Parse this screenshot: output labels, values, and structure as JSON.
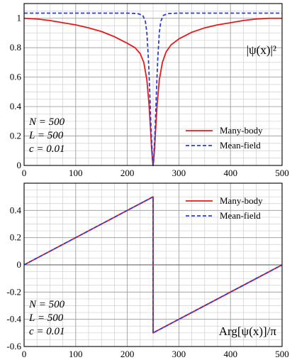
{
  "chart_data": [
    {
      "type": "line",
      "title": "",
      "ylabel": "|ψ(x)|²",
      "xlabel": "",
      "xlim": [
        0,
        500
      ],
      "ylim": [
        0,
        1.1
      ],
      "xticks": [
        0,
        100,
        200,
        300,
        400,
        500
      ],
      "yticks": [
        0,
        0.2,
        0.4,
        0.6,
        0.8,
        1
      ],
      "xtick_labels": [
        "0",
        "100",
        "200",
        "300",
        "400",
        "500"
      ],
      "ytick_labels": [
        "0",
        "0.2",
        "0.4",
        "0.6",
        "0.8",
        "1"
      ],
      "grid": true,
      "legend_position": "bottom-right",
      "params": [
        "N = 500",
        "L = 500",
        "c = 0.01"
      ],
      "series": [
        {
          "name": "Many-body",
          "color": "#e8191b",
          "style": "solid",
          "x": [
            0,
            25,
            50,
            75,
            100,
            125,
            150,
            175,
            200,
            215,
            225,
            232,
            238,
            242,
            245,
            247,
            249,
            250,
            251,
            253,
            255,
            258,
            262,
            268,
            275,
            285,
            300,
            325,
            350,
            375,
            400,
            425,
            450,
            475,
            500
          ],
          "y": [
            1.0,
            0.995,
            0.985,
            0.97,
            0.955,
            0.935,
            0.91,
            0.875,
            0.83,
            0.8,
            0.76,
            0.7,
            0.58,
            0.42,
            0.25,
            0.12,
            0.03,
            0.0,
            0.03,
            0.12,
            0.25,
            0.42,
            0.58,
            0.7,
            0.77,
            0.82,
            0.86,
            0.905,
            0.935,
            0.955,
            0.97,
            0.985,
            0.995,
            1.0,
            1.0
          ]
        },
        {
          "name": "Mean-field",
          "color": "#2b3fd6",
          "style": "dashed",
          "x": [
            0,
            100,
            200,
            220,
            230,
            235,
            238,
            241,
            243,
            245,
            247,
            249,
            250,
            251,
            253,
            255,
            257,
            259,
            262,
            265,
            270,
            280,
            300,
            400,
            500
          ],
          "y": [
            1.035,
            1.035,
            1.035,
            1.032,
            1.02,
            0.98,
            0.9,
            0.72,
            0.55,
            0.35,
            0.17,
            0.03,
            0.0,
            0.03,
            0.17,
            0.35,
            0.55,
            0.72,
            0.9,
            0.98,
            1.02,
            1.032,
            1.035,
            1.035,
            1.035
          ]
        }
      ]
    },
    {
      "type": "line",
      "title": "",
      "ylabel": "Arg[ψ(x)]/π",
      "xlabel": "",
      "xlim": [
        0,
        500
      ],
      "ylim": [
        -0.6,
        0.6
      ],
      "xticks": [
        0,
        100,
        200,
        300,
        400,
        500
      ],
      "yticks": [
        -0.6,
        -0.4,
        -0.2,
        0,
        0.2,
        0.4
      ],
      "xtick_labels": [
        "0",
        "100",
        "200",
        "300",
        "400",
        "500"
      ],
      "ytick_labels": [
        "-0.6",
        "-0.4",
        "-0.2",
        "0",
        "0.2",
        "0.4"
      ],
      "grid": true,
      "legend_position": "top-right",
      "params": [
        "N = 500",
        "L = 500",
        "c = 0.01"
      ],
      "series": [
        {
          "name": "Many-body",
          "color": "#e8191b",
          "style": "solid",
          "x": [
            0,
            250,
            250,
            500
          ],
          "y": [
            0,
            0.5,
            -0.5,
            0
          ]
        },
        {
          "name": "Mean-field",
          "color": "#2b3fd6",
          "style": "dashed",
          "x": [
            0,
            250,
            250,
            500
          ],
          "y": [
            0,
            0.5,
            -0.5,
            0
          ]
        }
      ]
    }
  ]
}
